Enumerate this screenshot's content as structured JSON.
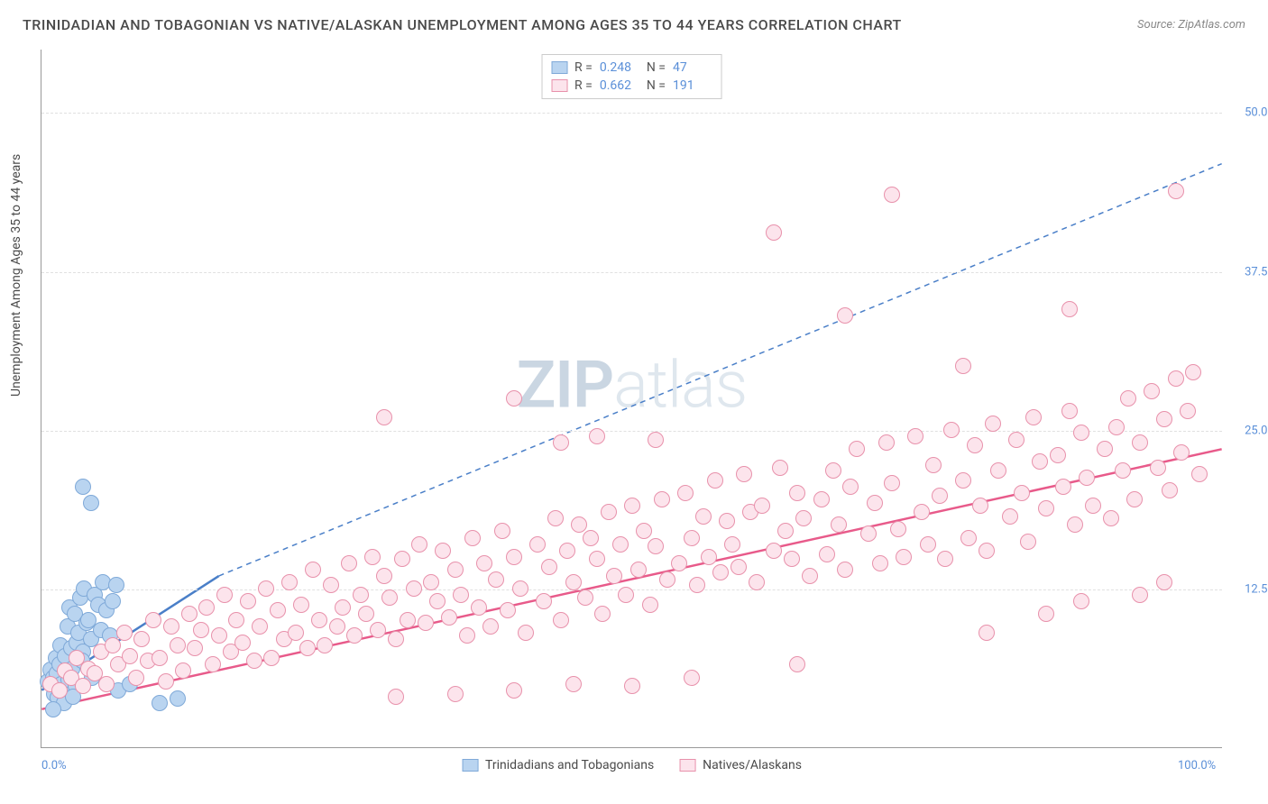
{
  "title": "TRINIDADIAN AND TOBAGONIAN VS NATIVE/ALASKAN UNEMPLOYMENT AMONG AGES 35 TO 44 YEARS CORRELATION CHART",
  "source": "Source: ZipAtlas.com",
  "ylabel": "Unemployment Among Ages 35 to 44 years",
  "watermark_a": "ZIP",
  "watermark_b": "atlas",
  "chart": {
    "type": "scatter",
    "xlim": [
      0,
      100
    ],
    "ylim": [
      0,
      55
    ],
    "xticks": [
      {
        "v": 0,
        "label": "0.0%"
      },
      {
        "v": 100,
        "label": "100.0%"
      }
    ],
    "yticks": [
      {
        "v": 12.5,
        "label": "12.5%"
      },
      {
        "v": 25.0,
        "label": "25.0%"
      },
      {
        "v": 37.5,
        "label": "37.5%"
      },
      {
        "v": 50.0,
        "label": "50.0%"
      }
    ],
    "grid_color": "#e0e0e0",
    "background_color": "#ffffff",
    "marker_radius": 9,
    "marker_stroke_width": 1.5,
    "series": [
      {
        "name": "Trinidadians and Tobagonians",
        "fill": "#b9d4f0",
        "stroke": "#7fa9d8",
        "r": 0.248,
        "n": 47,
        "regression": {
          "x1": 0,
          "y1": 4.5,
          "x2": 15,
          "y2": 13.5,
          "x2_dash": 100,
          "y2_dash": 46,
          "color": "#4a7fc8",
          "width": 2.5
        },
        "points": [
          [
            0.5,
            5.2
          ],
          [
            0.8,
            6.1
          ],
          [
            1.0,
            5.5
          ],
          [
            1.1,
            4.2
          ],
          [
            1.2,
            7.0
          ],
          [
            1.3,
            5.8
          ],
          [
            1.4,
            3.9
          ],
          [
            1.5,
            6.5
          ],
          [
            1.6,
            8.0
          ],
          [
            1.7,
            5.0
          ],
          [
            1.8,
            4.5
          ],
          [
            2.0,
            7.2
          ],
          [
            2.1,
            6.0
          ],
          [
            2.2,
            9.5
          ],
          [
            2.3,
            5.3
          ],
          [
            2.4,
            11.0
          ],
          [
            2.5,
            7.8
          ],
          [
            2.6,
            6.2
          ],
          [
            2.8,
            10.5
          ],
          [
            3.0,
            8.2
          ],
          [
            3.1,
            9.0
          ],
          [
            3.3,
            11.8
          ],
          [
            3.5,
            7.5
          ],
          [
            3.6,
            12.5
          ],
          [
            3.8,
            9.8
          ],
          [
            4.0,
            10.0
          ],
          [
            4.2,
            8.5
          ],
          [
            4.5,
            12.0
          ],
          [
            4.8,
            11.2
          ],
          [
            5.0,
            9.2
          ],
          [
            5.2,
            13.0
          ],
          [
            5.5,
            10.8
          ],
          [
            5.8,
            8.8
          ],
          [
            6.0,
            11.5
          ],
          [
            6.3,
            12.8
          ],
          [
            2.9,
            4.8
          ],
          [
            3.4,
            6.8
          ],
          [
            4.3,
            5.5
          ],
          [
            1.9,
            3.5
          ],
          [
            2.7,
            4.0
          ],
          [
            6.5,
            4.5
          ],
          [
            7.5,
            5.0
          ],
          [
            10.0,
            3.5
          ],
          [
            11.5,
            3.8
          ],
          [
            3.5,
            20.5
          ],
          [
            4.2,
            19.2
          ],
          [
            1.0,
            3.0
          ]
        ]
      },
      {
        "name": "Natives/Alaskans",
        "fill": "#fce4ec",
        "stroke": "#e891ab",
        "r": 0.662,
        "n": 191,
        "regression": {
          "x1": 0,
          "y1": 3.0,
          "x2": 100,
          "y2": 23.5,
          "color": "#e85a8a",
          "width": 2.5
        },
        "points": [
          [
            0.8,
            5.0
          ],
          [
            1.5,
            4.5
          ],
          [
            2.0,
            6.0
          ],
          [
            2.5,
            5.5
          ],
          [
            3.0,
            7.0
          ],
          [
            3.5,
            4.8
          ],
          [
            4.0,
            6.2
          ],
          [
            4.5,
            5.8
          ],
          [
            5.0,
            7.5
          ],
          [
            5.5,
            5.0
          ],
          [
            6.0,
            8.0
          ],
          [
            6.5,
            6.5
          ],
          [
            7.0,
            9.0
          ],
          [
            7.5,
            7.2
          ],
          [
            8.0,
            5.5
          ],
          [
            8.5,
            8.5
          ],
          [
            9.0,
            6.8
          ],
          [
            9.5,
            10.0
          ],
          [
            10.0,
            7.0
          ],
          [
            10.5,
            5.2
          ],
          [
            11.0,
            9.5
          ],
          [
            11.5,
            8.0
          ],
          [
            12.0,
            6.0
          ],
          [
            12.5,
            10.5
          ],
          [
            13.0,
            7.8
          ],
          [
            13.5,
            9.2
          ],
          [
            14.0,
            11.0
          ],
          [
            14.5,
            6.5
          ],
          [
            15.0,
            8.8
          ],
          [
            15.5,
            12.0
          ],
          [
            16.0,
            7.5
          ],
          [
            16.5,
            10.0
          ],
          [
            17.0,
            8.2
          ],
          [
            17.5,
            11.5
          ],
          [
            18.0,
            6.8
          ],
          [
            18.5,
            9.5
          ],
          [
            19.0,
            12.5
          ],
          [
            19.5,
            7.0
          ],
          [
            20.0,
            10.8
          ],
          [
            20.5,
            8.5
          ],
          [
            21.0,
            13.0
          ],
          [
            21.5,
            9.0
          ],
          [
            22.0,
            11.2
          ],
          [
            22.5,
            7.8
          ],
          [
            23.0,
            14.0
          ],
          [
            23.5,
            10.0
          ],
          [
            24.0,
            8.0
          ],
          [
            24.5,
            12.8
          ],
          [
            25.0,
            9.5
          ],
          [
            25.5,
            11.0
          ],
          [
            26.0,
            14.5
          ],
          [
            26.5,
            8.8
          ],
          [
            27.0,
            12.0
          ],
          [
            27.5,
            10.5
          ],
          [
            28.0,
            15.0
          ],
          [
            28.5,
            9.2
          ],
          [
            29.0,
            13.5
          ],
          [
            29.5,
            11.8
          ],
          [
            30.0,
            8.5
          ],
          [
            30.5,
            14.8
          ],
          [
            31.0,
            10.0
          ],
          [
            31.5,
            12.5
          ],
          [
            32.0,
            16.0
          ],
          [
            32.5,
            9.8
          ],
          [
            33.0,
            13.0
          ],
          [
            33.5,
            11.5
          ],
          [
            34.0,
            15.5
          ],
          [
            34.5,
            10.2
          ],
          [
            35.0,
            14.0
          ],
          [
            35.5,
            12.0
          ],
          [
            36.0,
            8.8
          ],
          [
            36.5,
            16.5
          ],
          [
            37.0,
            11.0
          ],
          [
            37.5,
            14.5
          ],
          [
            38.0,
            9.5
          ],
          [
            38.5,
            13.2
          ],
          [
            39.0,
            17.0
          ],
          [
            39.5,
            10.8
          ],
          [
            40.0,
            15.0
          ],
          [
            40.5,
            12.5
          ],
          [
            41.0,
            9.0
          ],
          [
            29.0,
            26.0
          ],
          [
            42.0,
            16.0
          ],
          [
            42.5,
            11.5
          ],
          [
            43.0,
            14.2
          ],
          [
            43.5,
            18.0
          ],
          [
            44.0,
            10.0
          ],
          [
            44.5,
            15.5
          ],
          [
            45.0,
            13.0
          ],
          [
            45.5,
            17.5
          ],
          [
            46.0,
            11.8
          ],
          [
            46.5,
            16.5
          ],
          [
            47.0,
            14.8
          ],
          [
            47.5,
            10.5
          ],
          [
            48.0,
            18.5
          ],
          [
            48.5,
            13.5
          ],
          [
            49.0,
            16.0
          ],
          [
            49.5,
            12.0
          ],
          [
            50.0,
            19.0
          ],
          [
            50.5,
            14.0
          ],
          [
            51.0,
            17.0
          ],
          [
            51.5,
            11.2
          ],
          [
            52.0,
            15.8
          ],
          [
            52.5,
            19.5
          ],
          [
            53.0,
            13.2
          ],
          [
            40.0,
            27.5
          ],
          [
            54.0,
            14.5
          ],
          [
            54.5,
            20.0
          ],
          [
            55.0,
            16.5
          ],
          [
            55.5,
            12.8
          ],
          [
            56.0,
            18.2
          ],
          [
            56.5,
            15.0
          ],
          [
            57.0,
            21.0
          ],
          [
            57.5,
            13.8
          ],
          [
            58.0,
            17.8
          ],
          [
            58.5,
            16.0
          ],
          [
            59.0,
            14.2
          ],
          [
            59.5,
            21.5
          ],
          [
            60.0,
            18.5
          ],
          [
            60.5,
            13.0
          ],
          [
            61.0,
            19.0
          ],
          [
            44.0,
            24.0
          ],
          [
            62.0,
            15.5
          ],
          [
            62.5,
            22.0
          ],
          [
            63.0,
            17.0
          ],
          [
            63.5,
            14.8
          ],
          [
            64.0,
            20.0
          ],
          [
            64.5,
            18.0
          ],
          [
            65.0,
            13.5
          ],
          [
            47.0,
            24.5
          ],
          [
            66.0,
            19.5
          ],
          [
            66.5,
            15.2
          ],
          [
            67.0,
            21.8
          ],
          [
            67.5,
            17.5
          ],
          [
            68.0,
            14.0
          ],
          [
            68.5,
            20.5
          ],
          [
            69.0,
            23.5
          ],
          [
            52.0,
            24.2
          ],
          [
            70.0,
            16.8
          ],
          [
            70.5,
            19.2
          ],
          [
            71.0,
            14.5
          ],
          [
            71.5,
            24.0
          ],
          [
            72.0,
            20.8
          ],
          [
            72.5,
            17.2
          ],
          [
            73.0,
            15.0
          ],
          [
            64.0,
            6.5
          ],
          [
            74.0,
            24.5
          ],
          [
            74.5,
            18.5
          ],
          [
            75.0,
            16.0
          ],
          [
            75.5,
            22.2
          ],
          [
            76.0,
            19.8
          ],
          [
            76.5,
            14.8
          ],
          [
            77.0,
            25.0
          ],
          [
            68.0,
            34.0
          ],
          [
            78.0,
            21.0
          ],
          [
            78.5,
            16.5
          ],
          [
            79.0,
            23.8
          ],
          [
            79.5,
            19.0
          ],
          [
            80.0,
            15.5
          ],
          [
            80.5,
            25.5
          ],
          [
            81.0,
            21.8
          ],
          [
            78.0,
            30.0
          ],
          [
            82.0,
            18.2
          ],
          [
            82.5,
            24.2
          ],
          [
            83.0,
            20.0
          ],
          [
            83.5,
            16.2
          ],
          [
            84.0,
            26.0
          ],
          [
            84.5,
            22.5
          ],
          [
            85.0,
            18.8
          ],
          [
            62.0,
            40.5
          ],
          [
            86.0,
            23.0
          ],
          [
            86.5,
            20.5
          ],
          [
            87.0,
            26.5
          ],
          [
            87.5,
            17.5
          ],
          [
            88.0,
            24.8
          ],
          [
            88.5,
            21.2
          ],
          [
            89.0,
            19.0
          ],
          [
            72.0,
            43.5
          ],
          [
            90.0,
            23.5
          ],
          [
            90.5,
            18.0
          ],
          [
            91.0,
            25.2
          ],
          [
            91.5,
            21.8
          ],
          [
            92.0,
            27.5
          ],
          [
            92.5,
            19.5
          ],
          [
            93.0,
            24.0
          ],
          [
            87.0,
            34.5
          ],
          [
            94.0,
            28.0
          ],
          [
            94.5,
            22.0
          ],
          [
            95.0,
            25.8
          ],
          [
            95.5,
            20.2
          ],
          [
            96.0,
            29.0
          ],
          [
            96.5,
            23.2
          ],
          [
            97.0,
            26.5
          ],
          [
            96.0,
            43.8
          ],
          [
            97.5,
            29.5
          ],
          [
            98.0,
            21.5
          ],
          [
            95.0,
            13.0
          ],
          [
            93.0,
            12.0
          ],
          [
            88.0,
            11.5
          ],
          [
            85.0,
            10.5
          ],
          [
            80.0,
            9.0
          ],
          [
            55.0,
            5.5
          ],
          [
            50.0,
            4.8
          ],
          [
            45.0,
            5.0
          ],
          [
            40.0,
            4.5
          ],
          [
            35.0,
            4.2
          ],
          [
            30.0,
            4.0
          ]
        ]
      }
    ]
  },
  "bottom_legend": [
    {
      "label": "Trinidadians and Tobagonians",
      "fill": "#b9d4f0",
      "stroke": "#7fa9d8"
    },
    {
      "label": "Natives/Alaskans",
      "fill": "#fce4ec",
      "stroke": "#e891ab"
    }
  ]
}
